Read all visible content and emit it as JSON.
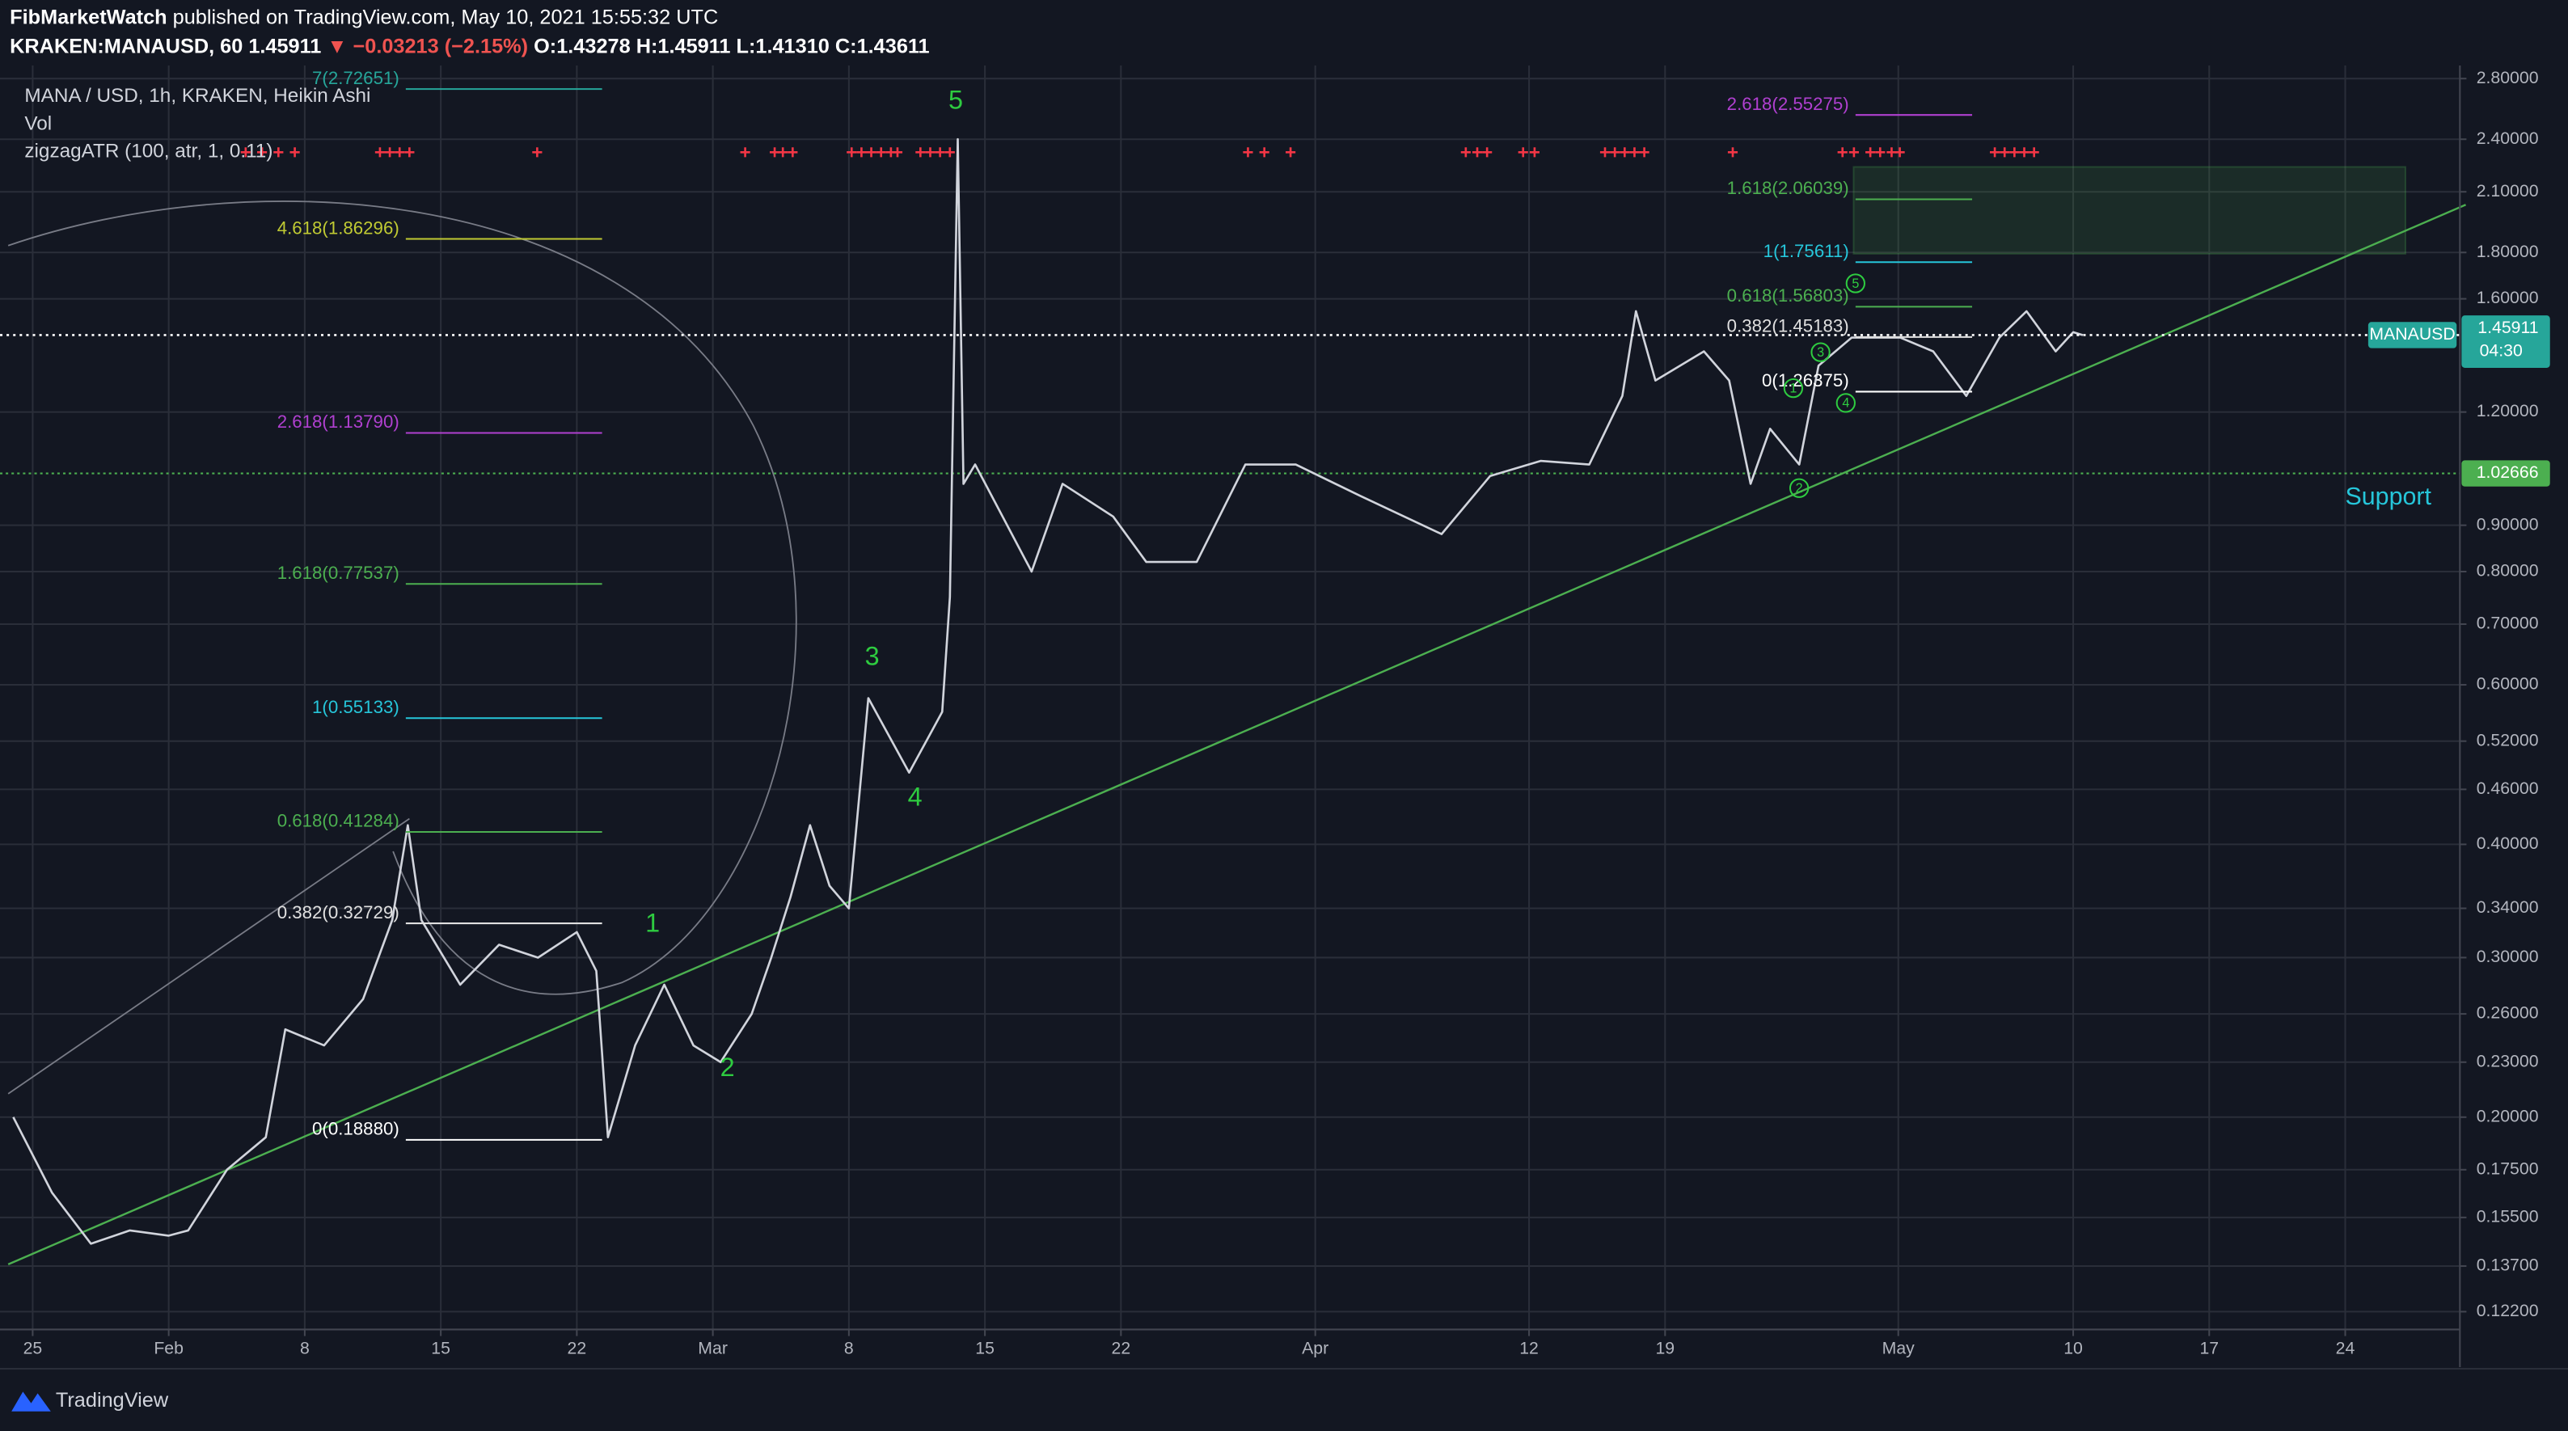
{
  "header": {
    "author": "FibMarketWatch",
    "published": "published on TradingView.com, May 10, 2021 15:55:32 UTC",
    "symbol": "KRAKEN:MANAUSD, 60",
    "last": "1.45911",
    "change": "▼ −0.03213 (−2.15%)",
    "ohlc": [
      "O:1.43278",
      "H:1.45911",
      "L:1.41310",
      "C:1.43611"
    ]
  },
  "legend": [
    "MANA / USD, 1h, KRAKEN, Heikin Ashi",
    "Vol",
    "zigzagATR (100, atr, 1, 0.11)"
  ],
  "chart_data": {
    "type": "line",
    "log_scale": true,
    "grid": true,
    "color": "#d1d4dc",
    "x": [
      -1,
      1,
      3,
      5,
      7,
      8,
      10,
      12,
      13,
      15,
      17,
      18.5,
      19.3,
      20,
      22,
      24,
      26,
      28,
      29,
      29.6,
      31,
      32.5,
      34,
      35.4,
      37,
      38,
      39,
      40,
      41,
      42,
      43,
      45.1,
      46.8,
      47.2,
      47.6,
      47.9,
      48.5,
      51.4,
      53,
      55.6,
      57.3,
      59.9,
      62.4,
      65,
      68.3,
      72.5,
      75,
      77.6,
      80.1,
      81.8,
      82.5,
      83.5,
      86,
      87.3,
      88.4,
      89.4,
      90.9,
      91.9,
      93.6,
      96.1,
      97.8,
      99.5,
      101.2,
      102.6,
      104.1,
      105,
      105.5
    ],
    "values": [
      0.2,
      0.165,
      0.145,
      0.15,
      0.148,
      0.15,
      0.175,
      0.19,
      0.25,
      0.24,
      0.27,
      0.33,
      0.42,
      0.33,
      0.28,
      0.31,
      0.3,
      0.32,
      0.29,
      0.19,
      0.24,
      0.28,
      0.24,
      0.23,
      0.26,
      0.3,
      0.35,
      0.42,
      0.36,
      0.34,
      0.58,
      0.48,
      0.56,
      0.75,
      2.4,
      1.0,
      1.05,
      0.8,
      1.0,
      0.92,
      0.82,
      0.82,
      1.05,
      1.05,
      0.97,
      0.88,
      1.02,
      1.06,
      1.05,
      1.25,
      1.55,
      1.3,
      1.4,
      1.3,
      1.0,
      1.15,
      1.05,
      1.35,
      1.45,
      1.45,
      1.4,
      1.25,
      1.45,
      1.55,
      1.4,
      1.47,
      1.459
    ],
    "xlim": [
      -1.26,
      124.9
    ],
    "xticks": [
      {
        "value": 0,
        "label": "25"
      },
      {
        "value": 7,
        "label": "Feb"
      },
      {
        "value": 14,
        "label": "8"
      },
      {
        "value": 21,
        "label": "15"
      },
      {
        "value": 28,
        "label": "22"
      },
      {
        "value": 35,
        "label": "Mar"
      },
      {
        "value": 42,
        "label": "8"
      },
      {
        "value": 49,
        "label": "15"
      },
      {
        "value": 56,
        "label": "22"
      },
      {
        "value": 66,
        "label": "Apr"
      },
      {
        "value": 77,
        "label": "12"
      },
      {
        "value": 84,
        "label": "19"
      },
      {
        "value": 96,
        "label": "May"
      },
      {
        "value": 105,
        "label": "10"
      },
      {
        "value": 112,
        "label": "17"
      },
      {
        "value": 119,
        "label": "24"
      }
    ],
    "ylim": [
      0.1166,
      2.8947
    ],
    "yticks": [
      {
        "value": 2.8,
        "label": "2.80000"
      },
      {
        "value": 2.4,
        "label": "2.40000"
      },
      {
        "value": 2.1,
        "label": "2.10000"
      },
      {
        "value": 1.8,
        "label": "1.80000"
      },
      {
        "value": 1.6,
        "label": "1.60000"
      },
      {
        "value": 1.2,
        "label": "1.20000"
      },
      {
        "value": 0.9,
        "label": "0.90000"
      },
      {
        "value": 0.8,
        "label": "0.80000"
      },
      {
        "value": 0.7,
        "label": "0.70000"
      },
      {
        "value": 0.6,
        "label": "0.60000"
      },
      {
        "value": 0.52,
        "label": "0.52000"
      },
      {
        "value": 0.46,
        "label": "0.46000"
      },
      {
        "value": 0.4,
        "label": "0.40000"
      },
      {
        "value": 0.34,
        "label": "0.34000"
      },
      {
        "value": 0.3,
        "label": "0.30000"
      },
      {
        "value": 0.26,
        "label": "0.26000"
      },
      {
        "value": 0.23,
        "label": "0.23000"
      },
      {
        "value": 0.2,
        "label": "0.20000"
      },
      {
        "value": 0.175,
        "label": "0.17500"
      },
      {
        "value": 0.155,
        "label": "0.15500"
      },
      {
        "value": 0.137,
        "label": "0.13700"
      },
      {
        "value": 0.122,
        "label": "0.12200"
      }
    ],
    "price_line": {
      "value": 1.45911,
      "symbol": "MANAUSD",
      "countdown": "04:30",
      "color": "#26a69a"
    },
    "support": {
      "value": 1.02666,
      "text": "Support",
      "color": "#4caf50"
    },
    "trendline": {
      "x": [
        -1.26,
        125.2
      ],
      "values": [
        0.1376,
        2.032
      ],
      "color": "#4caf50"
    },
    "target_zone": {
      "x": [
        93.7,
        122.1
      ],
      "values": [
        1.794,
        2.237
      ]
    },
    "fib_sets": [
      {
        "x": [
          19.2,
          29.3
        ],
        "levels": [
          {
            "value": 2.72651,
            "label": "7(2.72651)",
            "color": "#26a69a"
          },
          {
            "value": 1.86296,
            "label": "4.618(1.86296)",
            "color": "#c0ca33"
          },
          {
            "value": 1.1379,
            "label": "2.618(1.13790)",
            "color": "#b040d0"
          },
          {
            "value": 0.77537,
            "label": "1.618(0.77537)",
            "color": "#4caf50"
          },
          {
            "value": 0.55133,
            "label": "1(0.55133)",
            "color": "#26c6da"
          },
          {
            "value": 0.41284,
            "label": "0.618(0.41284)",
            "color": "#4caf50"
          },
          {
            "value": 0.32729,
            "label": "0.382(0.32729)",
            "color": "#e0e0e0"
          },
          {
            "value": 0.1888,
            "label": "0(0.18880)",
            "color": "#ffffff"
          }
        ]
      },
      {
        "x": [
          93.8,
          99.8
        ],
        "levels": [
          {
            "value": 2.55275,
            "label": "2.618(2.55275)",
            "color": "#b040d0"
          },
          {
            "value": 2.06039,
            "label": "1.618(2.06039)",
            "color": "#4caf50"
          },
          {
            "value": 1.75611,
            "label": "1(1.75611)",
            "color": "#26c6da"
          },
          {
            "value": 1.56803,
            "label": "0.618(1.56803)",
            "color": "#4caf50"
          },
          {
            "value": 1.45183,
            "label": "0.382(1.45183)",
            "color": "#e0e0e0"
          },
          {
            "value": 1.26375,
            "label": "0(1.26375)",
            "color": "#ffffff"
          }
        ]
      }
    ],
    "waves": [
      {
        "label": "5",
        "x": 47.5,
        "value": 2.64
      },
      {
        "label": "3",
        "x": 43.2,
        "value": 0.642
      },
      {
        "label": "4",
        "x": 45.4,
        "value": 0.449
      },
      {
        "label": "1",
        "x": 31.9,
        "value": 0.326
      },
      {
        "label": "2",
        "x": 35.75,
        "value": 0.226
      }
    ],
    "sub_waves": [
      {
        "label": "1",
        "x": 90.6,
        "value": 1.275
      },
      {
        "label": "2",
        "x": 90.9,
        "value": 0.989
      },
      {
        "label": "3",
        "x": 92.0,
        "value": 1.397
      },
      {
        "label": "4",
        "x": 93.3,
        "value": 1.228
      },
      {
        "label": "5",
        "x": 93.8,
        "value": 1.664
      }
    ]
  },
  "footer": {
    "brand": "TradingView"
  }
}
